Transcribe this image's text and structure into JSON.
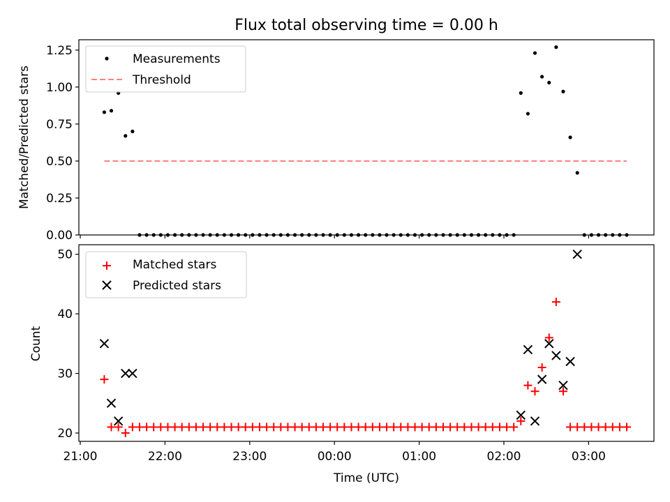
{
  "title": "Flux total observing time = 0.00 h",
  "chart_data": [
    {
      "type": "scatter",
      "panel": "top",
      "ylabel": "Matched/Predicted stars",
      "xlabel": "",
      "ylim": [
        0,
        1.32
      ],
      "yticks": [
        0.0,
        0.25,
        0.5,
        0.75,
        1.0,
        1.25
      ],
      "ytick_labels": [
        "0.00",
        "0.25",
        "0.50",
        "0.75",
        "1.00",
        "1.25"
      ],
      "legend": {
        "placement": "top-left",
        "entries": [
          "Measurements",
          "Threshold"
        ]
      },
      "series": [
        {
          "name": "Measurements",
          "marker": "dot",
          "color": "#000000",
          "x": [
            "21:17",
            "21:22",
            "21:27",
            "21:32",
            "21:37",
            "21:42",
            "21:47",
            "21:52",
            "21:57",
            "22:02",
            "22:07",
            "22:12",
            "22:17",
            "22:22",
            "22:27",
            "22:32",
            "22:37",
            "22:42",
            "22:47",
            "22:52",
            "22:57",
            "23:02",
            "23:07",
            "23:12",
            "23:17",
            "23:22",
            "23:27",
            "23:32",
            "23:37",
            "23:42",
            "23:47",
            "23:52",
            "23:57",
            "00:02",
            "00:07",
            "00:12",
            "00:17",
            "00:22",
            "00:27",
            "00:32",
            "00:37",
            "00:42",
            "00:47",
            "00:52",
            "00:57",
            "01:02",
            "01:07",
            "01:12",
            "01:17",
            "01:22",
            "01:27",
            "01:32",
            "01:37",
            "01:42",
            "01:47",
            "01:52",
            "01:57",
            "02:02",
            "02:07",
            "02:12",
            "02:17",
            "02:22",
            "02:27",
            "02:32",
            "02:37",
            "02:42",
            "02:47",
            "02:52",
            "02:57",
            "03:02",
            "03:07",
            "03:12",
            "03:17",
            "03:22",
            "03:27"
          ],
          "y": [
            0.83,
            0.84,
            0.96,
            0.67,
            0.7,
            0,
            0,
            0,
            0,
            0,
            0,
            0,
            0,
            0,
            0,
            0,
            0,
            0,
            0,
            0,
            0,
            0,
            0,
            0,
            0,
            0,
            0,
            0,
            0,
            0,
            0,
            0,
            0,
            0,
            0,
            0,
            0,
            0,
            0,
            0,
            0,
            0,
            0,
            0,
            0,
            0,
            0,
            0,
            0,
            0,
            0,
            0,
            0,
            0,
            0,
            0,
            0,
            0,
            0,
            0.96,
            0.82,
            1.23,
            1.07,
            1.03,
            1.27,
            0.97,
            0.66,
            0.42,
            0,
            0,
            0,
            0,
            0,
            0,
            0
          ]
        },
        {
          "name": "Threshold",
          "style": "dashed",
          "color": "#ff8080",
          "x": [
            "21:17",
            "03:27"
          ],
          "y": [
            0.5,
            0.5
          ]
        }
      ]
    },
    {
      "type": "scatter",
      "panel": "bottom",
      "ylabel": "Count",
      "xlabel": "Time (UTC)",
      "ylim": [
        18.6,
        51.6
      ],
      "yticks": [
        20,
        30,
        40,
        50
      ],
      "ytick_labels": [
        "20",
        "30",
        "40",
        "50"
      ],
      "xticks": [
        "21:00",
        "22:00",
        "23:00",
        "00:00",
        "01:00",
        "02:00",
        "03:00"
      ],
      "legend": {
        "placement": "top-left",
        "entries": [
          "Matched stars",
          "Predicted stars"
        ]
      },
      "series": [
        {
          "name": "Matched stars",
          "marker": "plus",
          "color": "#ff0000",
          "x": [
            "21:17",
            "21:22",
            "21:27",
            "21:32",
            "21:37",
            "21:42",
            "21:47",
            "21:52",
            "21:57",
            "22:02",
            "22:07",
            "22:12",
            "22:17",
            "22:22",
            "22:27",
            "22:32",
            "22:37",
            "22:42",
            "22:47",
            "22:52",
            "22:57",
            "23:02",
            "23:07",
            "23:12",
            "23:17",
            "23:22",
            "23:27",
            "23:32",
            "23:37",
            "23:42",
            "23:47",
            "23:52",
            "23:57",
            "00:02",
            "00:07",
            "00:12",
            "00:17",
            "00:22",
            "00:27",
            "00:32",
            "00:37",
            "00:42",
            "00:47",
            "00:52",
            "00:57",
            "01:02",
            "01:07",
            "01:12",
            "01:17",
            "01:22",
            "01:27",
            "01:32",
            "01:37",
            "01:42",
            "01:47",
            "01:52",
            "01:57",
            "02:02",
            "02:07",
            "02:12",
            "02:17",
            "02:22",
            "02:27",
            "02:32",
            "02:37",
            "02:42",
            "02:47",
            "02:52",
            "02:57",
            "03:02",
            "03:07",
            "03:12",
            "03:17",
            "03:22",
            "03:27"
          ],
          "y": [
            29,
            21,
            21,
            20,
            21,
            21,
            21,
            21,
            21,
            21,
            21,
            21,
            21,
            21,
            21,
            21,
            21,
            21,
            21,
            21,
            21,
            21,
            21,
            21,
            21,
            21,
            21,
            21,
            21,
            21,
            21,
            21,
            21,
            21,
            21,
            21,
            21,
            21,
            21,
            21,
            21,
            21,
            21,
            21,
            21,
            21,
            21,
            21,
            21,
            21,
            21,
            21,
            21,
            21,
            21,
            21,
            21,
            21,
            21,
            22,
            28,
            27,
            31,
            36,
            42,
            27,
            21,
            21,
            21,
            21,
            21,
            21,
            21,
            21,
            21
          ]
        },
        {
          "name": "Predicted stars",
          "marker": "x",
          "color": "#000000",
          "x": [
            "21:17",
            "21:22",
            "21:27",
            "21:32",
            "21:37",
            "02:12",
            "02:17",
            "02:22",
            "02:27",
            "02:32",
            "02:37",
            "02:42",
            "02:47",
            "02:52"
          ],
          "y": [
            35,
            25,
            22,
            30,
            30,
            23,
            34,
            22,
            29,
            35,
            33,
            28,
            32,
            50
          ]
        }
      ]
    }
  ]
}
